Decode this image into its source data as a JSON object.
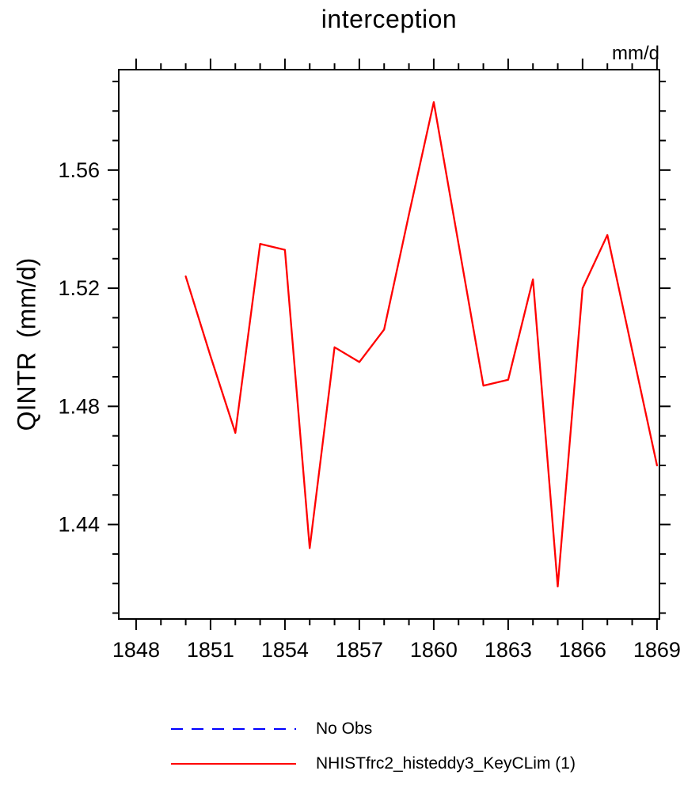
{
  "title": "interception",
  "units_label": "mm/d",
  "chart_data": {
    "type": "line",
    "title": "interception",
    "xlabel": "",
    "ylabel": "QINTR  (mm/d)",
    "units": "mm/d",
    "x": [
      1850,
      1851,
      1852,
      1853,
      1854,
      1855,
      1856,
      1857,
      1858,
      1859,
      1860,
      1861,
      1862,
      1863,
      1864,
      1865,
      1866,
      1867,
      1868,
      1869
    ],
    "series": [
      {
        "name": "NHISTfrc2_histeddy3_KeyCLim (1)",
        "color": "#ff0000",
        "style": "solid",
        "values": [
          1.524,
          1.497,
          1.471,
          1.535,
          1.533,
          1.432,
          1.5,
          1.495,
          1.506,
          1.545,
          1.583,
          1.535,
          1.487,
          1.489,
          1.523,
          1.419,
          1.52,
          1.538,
          1.499,
          1.46
        ]
      }
    ],
    "xlim": [
      1847.3,
      1869.1
    ],
    "ylim": [
      1.408,
      1.594
    ],
    "x_ticks": [
      1848,
      1851,
      1854,
      1857,
      1860,
      1863,
      1866,
      1869
    ],
    "x_minor_step": 1,
    "y_ticks": [
      1.44,
      1.48,
      1.52,
      1.56
    ],
    "y_minor_step": 0.01,
    "grid": false,
    "legend_position": "bottom",
    "legend": [
      {
        "label": "No Obs",
        "color": "#0000ff",
        "style": "dashed"
      },
      {
        "label": "NHISTfrc2_histeddy3_KeyCLim (1)",
        "color": "#ff0000",
        "style": "solid"
      }
    ]
  }
}
